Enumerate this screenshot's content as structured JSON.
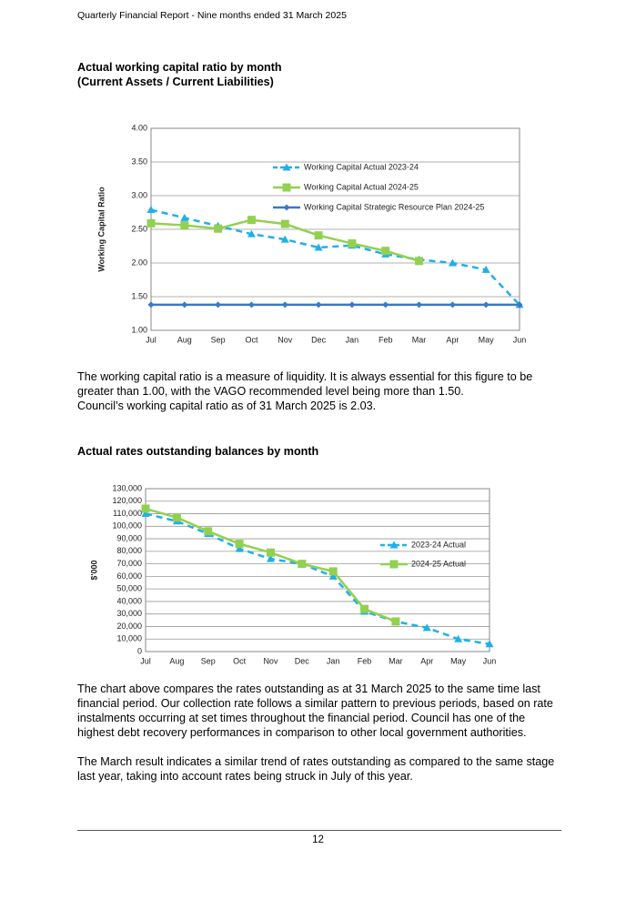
{
  "header": {
    "text": "Quarterly Financial Report - Nine months ended 31 March 2025"
  },
  "paragraphs": [
    "The working capital ratio is a measure of liquidity. It is always essential for this figure to be greater than 1.00, with the VAGO recommended level being more than 1.50.",
    "Council’s working capital ratio as of 31 March 2025 is 2.03.",
    "The chart above compares the rates outstanding as at 31 March 2025 to the same time last financial period. Our collection rate follows a similar pattern to previous periods, based on rate instalments occurring at set times throughout the financial period. Council has one of the highest debt recovery performances in comparison to other local government authorities.",
    "The March result indicates a similar trend of rates outstanding as compared to the same stage last year, taking into account rates being struck in July of this year."
  ],
  "footer": {
    "page": 12
  },
  "chart_data": [
    {
      "type": "line",
      "title": "Actual working capital ratio by month",
      "subtitle": "(Current Assets / Current Liabilities)",
      "y_label": "Working Capital Ratio",
      "categories": [
        "Jul",
        "Aug",
        "Sep",
        "Oct",
        "Nov",
        "Dec",
        "Jan",
        "Feb",
        "Mar",
        "Apr",
        "May",
        "Jun"
      ],
      "ylim": [
        1,
        4
      ],
      "yticks": [
        {
          "value": 1,
          "label": "1.00"
        },
        {
          "value": 1.5,
          "label": "1.50"
        },
        {
          "value": 2,
          "label": "2.00"
        },
        {
          "value": 2.5,
          "label": "2.50"
        },
        {
          "value": 3,
          "label": "3.00"
        },
        {
          "value": 3.5,
          "label": "3.50"
        },
        {
          "value": 4,
          "label": "4.00"
        }
      ],
      "grid": true,
      "series": [
        {
          "name": "Working Capital Actual 2023-24",
          "color": "#1fb0e8",
          "dashed": true,
          "marker": "triangle",
          "values": [
            2.79,
            2.67,
            2.55,
            2.43,
            2.35,
            2.23,
            2.26,
            2.13,
            2.05,
            2.0,
            1.9,
            1.38
          ]
        },
        {
          "name": "Working Capital Actual 2024-25",
          "color": "#92d050",
          "dashed": false,
          "marker": "square",
          "values": [
            2.59,
            2.56,
            2.51,
            2.64,
            2.58,
            2.41,
            2.29,
            2.18,
            2.03,
            null,
            null,
            null
          ]
        },
        {
          "name": "Working Capital Strategic Resource Plan 2024-25",
          "color": "#3c78c3",
          "dashed": false,
          "marker": "diamond",
          "values": [
            1.38,
            1.38,
            1.38,
            1.38,
            1.38,
            1.38,
            1.38,
            1.38,
            1.38,
            1.38,
            1.38,
            1.38
          ]
        }
      ]
    },
    {
      "type": "line",
      "title": "Actual rates outstanding balances by month",
      "y_label": "$'000",
      "categories": [
        "Jul",
        "Aug",
        "Sep",
        "Oct",
        "Nov",
        "Dec",
        "Jan",
        "Feb",
        "Mar",
        "Apr",
        "May",
        "Jun"
      ],
      "ylim": [
        0,
        130000
      ],
      "yticks": [
        0,
        {
          "value": 10000,
          "label": "10,000"
        },
        {
          "value": 20000,
          "label": "20,000"
        },
        {
          "value": 30000,
          "label": "30,000"
        },
        {
          "value": 40000,
          "label": "40,000"
        },
        {
          "value": 50000,
          "label": "50,000"
        },
        {
          "value": 60000,
          "label": "60,000"
        },
        {
          "value": 70000,
          "label": "70,000"
        },
        {
          "value": 80000,
          "label": "80,000"
        },
        {
          "value": 90000,
          "label": "90,000"
        },
        {
          "value": 100000,
          "label": "100,000"
        },
        {
          "value": 110000,
          "label": "110,000"
        },
        {
          "value": 120000,
          "label": "120,000"
        },
        {
          "value": 130000,
          "label": "130,000"
        }
      ],
      "grid": true,
      "series": [
        {
          "name": "2023-24 Actual",
          "color": "#1fb0e8",
          "dashed": true,
          "marker": "triangle",
          "values": [
            110000,
            104000,
            94000,
            82000,
            74000,
            70000,
            60000,
            32000,
            24000,
            19000,
            10000,
            6000
          ]
        },
        {
          "name": "2024-25 Actual",
          "color": "#92d050",
          "dashed": false,
          "marker": "square",
          "values": [
            114000,
            107000,
            96000,
            86000,
            79000,
            70000,
            64000,
            34000,
            24000,
            null,
            null,
            null
          ]
        }
      ]
    }
  ]
}
